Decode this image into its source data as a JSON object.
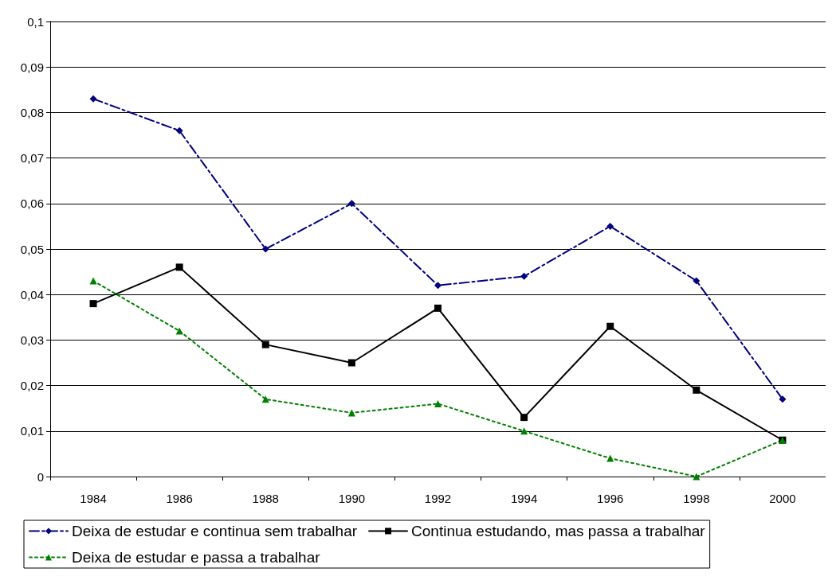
{
  "chart_data": {
    "type": "line",
    "categories": [
      "1984",
      "1986",
      "1988",
      "1990",
      "1992",
      "1994",
      "1996",
      "1998",
      "2000"
    ],
    "series": [
      {
        "name": "Deixa de estudar e continua sem trabalhar",
        "color": "#000080",
        "marker": "diamond",
        "line_style": "dashed",
        "values": [
          0.083,
          0.076,
          0.05,
          0.06,
          0.042,
          0.044,
          0.055,
          0.043,
          0.017
        ]
      },
      {
        "name": "Continua estudando, mas passa a trabalhar",
        "color": "#000000",
        "marker": "square",
        "line_style": "solid",
        "values": [
          0.038,
          0.046,
          0.029,
          0.025,
          0.037,
          0.013,
          0.033,
          0.019,
          0.008
        ]
      },
      {
        "name": "Deixa de estudar e passa a trabalhar",
        "color": "#008000",
        "marker": "triangle",
        "line_style": "dotted",
        "values": [
          0.043,
          0.032,
          0.017,
          0.014,
          0.016,
          0.01,
          0.004,
          0.0,
          0.008
        ]
      }
    ],
    "ylim": [
      0,
      0.1
    ],
    "yticks": [
      0,
      {
        "value": 0.01,
        "label": "0,01"
      },
      {
        "value": 0.02,
        "label": "0,02"
      },
      {
        "value": 0.03,
        "label": "0,03"
      },
      {
        "value": 0.04,
        "label": "0,04"
      },
      {
        "value": 0.05,
        "label": "0,05"
      },
      {
        "value": 0.06,
        "label": "0,06"
      },
      {
        "value": 0.07,
        "label": "0,07"
      },
      {
        "value": 0.08,
        "label": "0,08"
      },
      {
        "value": 0.09,
        "label": "0,09"
      },
      {
        "value": 0.1,
        "label": "0,1"
      }
    ],
    "grid": "y",
    "legend": "bottom"
  }
}
